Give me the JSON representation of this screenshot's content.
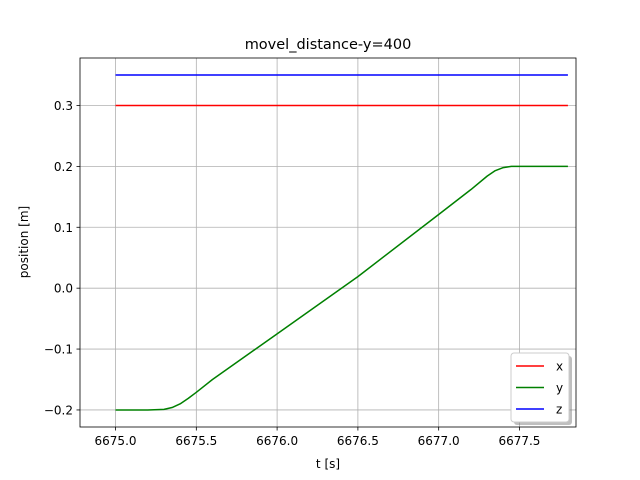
{
  "chart_data": {
    "type": "line",
    "title": "movel_distance-y=400",
    "xlabel": "t [s]",
    "ylabel": "position [m]",
    "xlim": [
      6674.78,
      6677.85
    ],
    "ylim": [
      -0.228,
      0.378
    ],
    "xticks": [
      6675.0,
      6675.5,
      6676.0,
      6676.5,
      6677.0,
      6677.5
    ],
    "xtick_labels": [
      "6675.0",
      "6675.5",
      "6676.0",
      "6676.5",
      "6677.0",
      "6677.5"
    ],
    "yticks": [
      -0.2,
      -0.1,
      0.0,
      0.1,
      0.2,
      0.3
    ],
    "ytick_labels": [
      "−0.2",
      "−0.1",
      "0.0",
      "0.1",
      "0.2",
      "0.3"
    ],
    "grid": true,
    "legend_position": "lower-right",
    "series": [
      {
        "name": "x",
        "color": "#ff0000",
        "x": [
          6675.0,
          6677.8
        ],
        "y": [
          0.3,
          0.3
        ]
      },
      {
        "name": "y",
        "color": "#008000",
        "x": [
          6675.0,
          6675.2,
          6675.3,
          6675.35,
          6675.4,
          6675.45,
          6675.5,
          6675.6,
          6676.0,
          6676.5,
          6677.0,
          6677.2,
          6677.3,
          6677.35,
          6677.4,
          6677.45,
          6677.5,
          6677.8
        ],
        "y": [
          -0.2,
          -0.2,
          -0.199,
          -0.196,
          -0.19,
          -0.181,
          -0.171,
          -0.15,
          -0.075,
          0.019,
          0.121,
          0.162,
          0.184,
          0.193,
          0.198,
          0.2,
          0.2,
          0.2
        ]
      },
      {
        "name": "z",
        "color": "#0000ff",
        "x": [
          6675.0,
          6677.8
        ],
        "y": [
          0.35,
          0.35
        ]
      }
    ]
  }
}
